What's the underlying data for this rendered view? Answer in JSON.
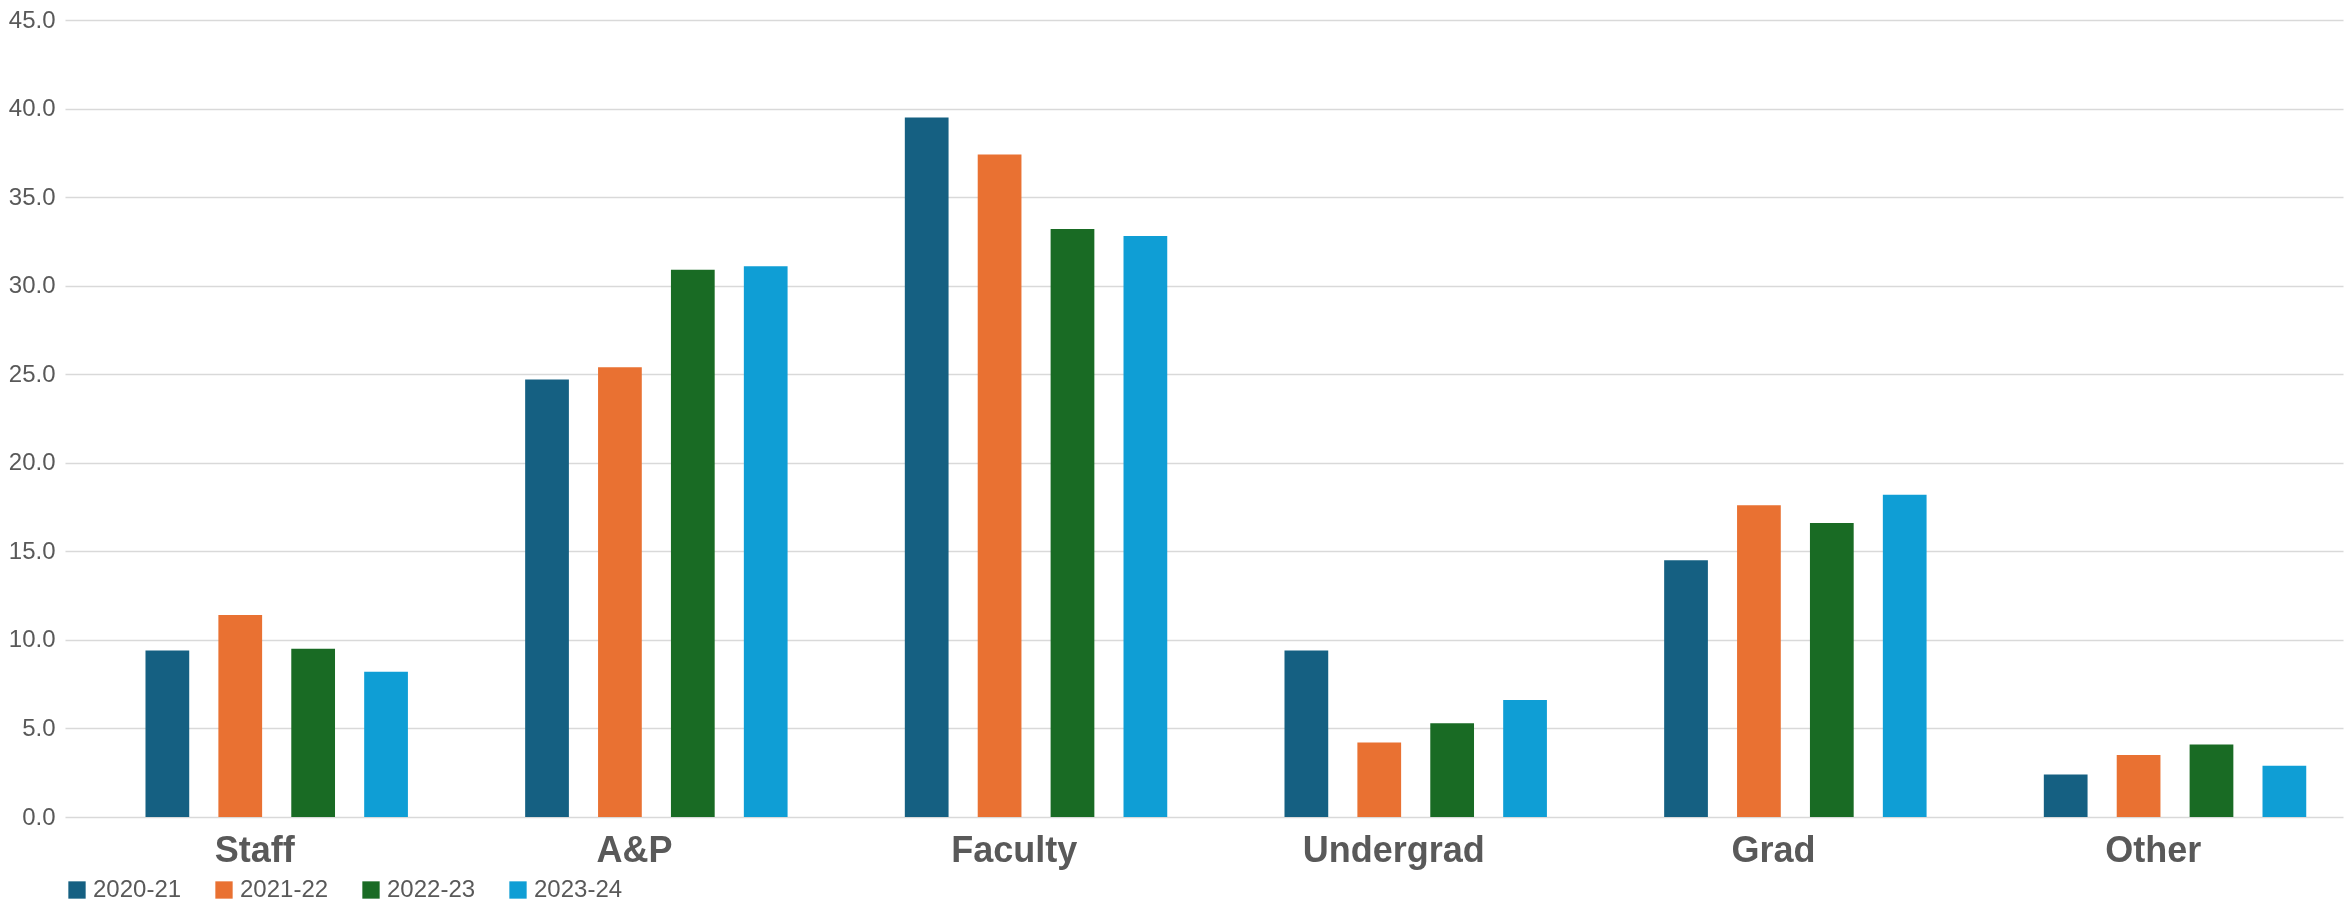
{
  "chart_data": {
    "type": "bar",
    "categories": [
      "Staff",
      "A&P",
      "Faculty",
      "Undergrad",
      "Grad",
      "Other"
    ],
    "series": [
      {
        "name": "2020-21",
        "color": "#156082",
        "values": [
          9.4,
          24.7,
          39.5,
          9.4,
          14.5,
          2.4
        ]
      },
      {
        "name": "2021-22",
        "color": "#e97132",
        "values": [
          11.4,
          25.4,
          37.4,
          4.2,
          17.6,
          3.5
        ]
      },
      {
        "name": "2022-23",
        "color": "#196b24",
        "values": [
          9.5,
          30.9,
          33.2,
          5.3,
          16.6,
          4.1
        ]
      },
      {
        "name": "2023-24",
        "color": "#0f9ed5",
        "values": [
          8.2,
          31.1,
          32.8,
          6.6,
          18.2,
          2.9
        ]
      }
    ],
    "ylim": [
      0,
      45
    ],
    "yticks": [
      {
        "value": 0,
        "label": "0.0"
      },
      {
        "value": 5,
        "label": "5.0"
      },
      {
        "value": 10,
        "label": "10.0"
      },
      {
        "value": 15,
        "label": "15.0"
      },
      {
        "value": 20,
        "label": "20.0"
      },
      {
        "value": 25,
        "label": "25.0"
      },
      {
        "value": 30,
        "label": "30.0"
      },
      {
        "value": 35,
        "label": "35.0"
      },
      {
        "value": 40,
        "label": "40.0"
      },
      {
        "value": 45,
        "label": "45.0"
      }
    ],
    "grid": "y",
    "legend": "bottom"
  }
}
